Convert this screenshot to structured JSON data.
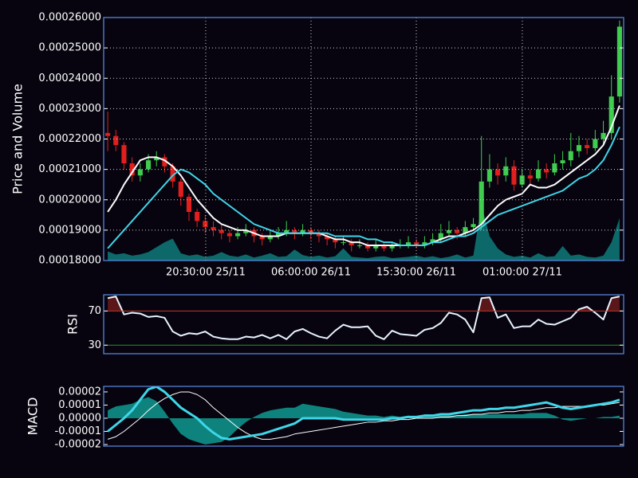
{
  "chart_data": [
    {
      "type": "candlestick",
      "ylabel": "Price and Volume",
      "categories": [
        null,
        null,
        null,
        null,
        null,
        null,
        null,
        null,
        null,
        null,
        null,
        null,
        null,
        null,
        null,
        null,
        null,
        null,
        null,
        null,
        null,
        null,
        null,
        null,
        null,
        null,
        null,
        null,
        null,
        null,
        null,
        null,
        null,
        null,
        null,
        null,
        null,
        null,
        null,
        null,
        null,
        null,
        null,
        null,
        null,
        null,
        null,
        null,
        null,
        null,
        null,
        null,
        null,
        null,
        null,
        null,
        null,
        null,
        null,
        null,
        null,
        null,
        null,
        null
      ],
      "xlim": [
        0,
        64
      ],
      "xticks": [
        {
          "value": 12.56,
          "label": "20:30:00 25/11"
        },
        {
          "value": 25.52,
          "label": "06:00:00 26/11"
        },
        {
          "value": 38.48,
          "label": "15:30:00 26/11"
        },
        {
          "value": 51.53,
          "label": "01:00:00 27/11"
        }
      ],
      "ylim": [
        0.00018,
        0.00026
      ],
      "yticks": [
        {
          "value": 0.00018,
          "label": "0.00018000"
        },
        {
          "value": 0.00019,
          "label": "0.00019000"
        },
        {
          "value": 0.0002,
          "label": "0.00020000"
        },
        {
          "value": 0.00021,
          "label": "0.00021000"
        },
        {
          "value": 0.00022,
          "label": "0.00022000"
        },
        {
          "value": 0.00023,
          "label": "0.00023000"
        },
        {
          "value": 0.00024,
          "label": "0.00024000"
        },
        {
          "value": 0.00025,
          "label": "0.00025000"
        },
        {
          "value": 0.00026,
          "label": "0.00026000"
        }
      ],
      "grid": true,
      "up_color": "#3fcc4f",
      "down_color": "#e0201e",
      "open": [
        0.000222,
        0.000221,
        0.000218,
        0.000212,
        0.000208,
        0.00021,
        0.000213,
        0.000214,
        0.000211,
        0.000206,
        0.000201,
        0.000196,
        0.000193,
        0.000191,
        0.00019,
        0.000189,
        0.000188,
        0.000189,
        0.00019,
        0.000188,
        0.000187,
        0.000188,
        0.000189,
        0.00019,
        0.000189,
        0.00019,
        0.000189,
        0.000188,
        0.000187,
        0.000186,
        0.000186,
        0.000185,
        0.000185,
        0.000184,
        0.000185,
        0.000184,
        0.000185,
        0.000185,
        0.000186,
        0.000185,
        0.000186,
        0.000187,
        0.000189,
        0.00019,
        0.000189,
        0.000191,
        0.000192,
        0.000206,
        0.00021,
        0.000208,
        0.000211,
        0.000205,
        0.000208,
        0.000207,
        0.00021,
        0.000209,
        0.000212,
        0.000213,
        0.000216,
        0.000218,
        0.000217,
        0.00022,
        0.000222,
        0.000234
      ],
      "high": [
        0.000229,
        0.000223,
        0.000219,
        0.000214,
        0.000212,
        0.000215,
        0.000216,
        0.000215,
        0.000212,
        0.000207,
        0.000202,
        0.000197,
        0.000195,
        0.000193,
        0.000192,
        0.00019,
        0.000191,
        0.000192,
        0.000191,
        0.000189,
        0.00019,
        0.000191,
        0.000193,
        0.000191,
        0.000192,
        0.000191,
        0.00019,
        0.000189,
        0.000188,
        0.000188,
        0.000187,
        0.000187,
        0.000186,
        0.000187,
        0.000186,
        0.000186,
        0.000187,
        0.000188,
        0.000187,
        0.000188,
        0.000189,
        0.000192,
        0.000193,
        0.000191,
        0.000193,
        0.000194,
        0.000221,
        0.000215,
        0.000212,
        0.000214,
        0.000213,
        0.00021,
        0.00021,
        0.000213,
        0.000212,
        0.000215,
        0.000216,
        0.000222,
        0.000221,
        0.00022,
        0.000223,
        0.000226,
        0.000241,
        0.000259
      ],
      "low": [
        0.000216,
        0.000216,
        0.00021,
        0.000206,
        0.000206,
        0.000209,
        0.000211,
        0.000209,
        0.000204,
        0.000198,
        0.000193,
        0.000191,
        0.000189,
        0.000188,
        0.000187,
        0.000186,
        0.000187,
        0.000188,
        0.000186,
        0.000185,
        0.000186,
        0.000187,
        0.000188,
        0.000187,
        0.000188,
        0.000187,
        0.000186,
        0.000185,
        0.000184,
        0.000185,
        0.000183,
        0.000184,
        0.000183,
        0.000183,
        0.000183,
        0.000183,
        0.000184,
        0.000184,
        0.000184,
        0.000184,
        0.000185,
        0.000186,
        0.000188,
        0.000187,
        0.000188,
        0.00019,
        0.00019,
        0.000204,
        0.000205,
        0.000206,
        0.000203,
        0.000204,
        0.000205,
        0.000206,
        0.000207,
        0.000208,
        0.00021,
        0.000211,
        0.000214,
        0.000215,
        0.000216,
        0.000218,
        0.00022,
        0.000232
      ],
      "close": [
        0.000221,
        0.000218,
        0.000212,
        0.000208,
        0.00021,
        0.000213,
        0.000214,
        0.000211,
        0.000206,
        0.000201,
        0.000196,
        0.000193,
        0.000191,
        0.00019,
        0.000189,
        0.000188,
        0.000189,
        0.00019,
        0.000188,
        0.000187,
        0.000188,
        0.000189,
        0.00019,
        0.000189,
        0.00019,
        0.000189,
        0.000188,
        0.000187,
        0.000186,
        0.000186,
        0.000185,
        0.000185,
        0.000184,
        0.000185,
        0.000184,
        0.000185,
        0.000185,
        0.000186,
        0.000185,
        0.000186,
        0.000187,
        0.000189,
        0.00019,
        0.000189,
        0.000191,
        0.000192,
        0.000206,
        0.00021,
        0.000208,
        0.000211,
        0.000205,
        0.000208,
        0.000207,
        0.00021,
        0.000209,
        0.000212,
        0.000213,
        0.000216,
        0.000218,
        0.000217,
        0.00022,
        0.000222,
        0.000234,
        0.000257
      ],
      "y2lim": [
        0,
        400
      ],
      "series": [
        {
          "color": "#0e7a7a",
          "kind": "area",
          "axis": "y2",
          "values": [
            15,
            10,
            12,
            8,
            10,
            14,
            22,
            30,
            36,
            12,
            8,
            10,
            6,
            8,
            14,
            8,
            6,
            10,
            5,
            8,
            12,
            6,
            7,
            18,
            9,
            6,
            8,
            5,
            7,
            20,
            6,
            5,
            4,
            6,
            7,
            4,
            5,
            6,
            8,
            5,
            7,
            4,
            6,
            10,
            5,
            8,
            92,
            40,
            20,
            10,
            6,
            8,
            5,
            12,
            6,
            7,
            24,
            8,
            10,
            6,
            5,
            8,
            30,
            70
          ]
        },
        {
          "color": "#ffffff",
          "values": [
            0.000196,
            0.0002,
            0.000205,
            0.000209,
            0.000213,
            0.000214,
            0.000214,
            0.000213,
            0.000211,
            0.000208,
            0.000204,
            0.0002,
            0.000197,
            0.000194,
            0.000192,
            0.000191,
            0.00019,
            0.00019,
            0.000189,
            0.000188,
            0.000188,
            0.000188,
            0.000189,
            0.000189,
            0.000189,
            0.000189,
            0.000189,
            0.000188,
            0.000187,
            0.000187,
            0.000186,
            0.000186,
            0.000185,
            0.000185,
            0.000185,
            0.000185,
            0.000185,
            0.000185,
            0.000185,
            0.000185,
            0.000186,
            0.000187,
            0.000188,
            0.000188,
            0.000189,
            0.00019,
            0.000192,
            0.000195,
            0.000198,
            0.0002,
            0.000201,
            0.000202,
            0.000205,
            0.000204,
            0.000204,
            0.000205,
            0.000207,
            0.000209,
            0.000211,
            0.000213,
            0.000215,
            0.000218,
            0.000224,
            0.000231
          ]
        },
        {
          "color": "#3fd6e8",
          "values": [
            0.000184,
            0.000187,
            0.00019,
            0.000193,
            0.000196,
            0.000199,
            0.000202,
            0.000205,
            0.000208,
            0.00021,
            0.000209,
            0.000207,
            0.000205,
            0.000202,
            0.0002,
            0.000198,
            0.000196,
            0.000194,
            0.000192,
            0.000191,
            0.00019,
            0.000189,
            0.000189,
            0.000189,
            0.000189,
            0.000189,
            0.000189,
            0.000189,
            0.000188,
            0.000188,
            0.000188,
            0.000188,
            0.000187,
            0.000187,
            0.000186,
            0.000186,
            0.000185,
            0.000185,
            0.000185,
            0.000185,
            0.000186,
            0.000186,
            0.000187,
            0.000188,
            0.000188,
            0.000189,
            0.000191,
            0.000193,
            0.000195,
            0.000196,
            0.000197,
            0.000198,
            0.000199,
            0.0002,
            0.000201,
            0.000202,
            0.000203,
            0.000205,
            0.000207,
            0.000208,
            0.00021,
            0.000213,
            0.000218,
            0.000224
          ]
        }
      ]
    },
    {
      "type": "line",
      "ylabel": "RSI",
      "ylim": [
        20,
        89
      ],
      "yticks": [
        30,
        70
      ],
      "tick_colors": [
        "#2e8b2e",
        "#c0392b"
      ],
      "fill_above": "#5a1618",
      "series": [
        {
          "color": "#e8f4ff",
          "values": [
            85,
            87,
            66,
            68,
            67,
            63,
            64,
            62,
            46,
            41,
            44,
            43,
            46,
            40,
            38,
            37,
            37,
            40,
            39,
            42,
            38,
            42,
            37,
            46,
            49,
            44,
            40,
            38,
            47,
            54,
            51,
            51,
            52,
            41,
            37,
            47,
            43,
            42,
            41,
            48,
            50,
            56,
            68,
            66,
            60,
            45,
            85,
            86,
            62,
            66,
            50,
            52,
            52,
            60,
            55,
            54,
            58,
            62,
            72,
            75,
            68,
            60,
            85,
            87
          ]
        }
      ]
    },
    {
      "type": "line",
      "ylabel": "MACD",
      "ylim": [
        -2.12e-05,
        2.42e-05
      ],
      "yticks": [
        {
          "value": 2e-05,
          "label": "0.00002"
        },
        {
          "value": 1e-05,
          "label": "0.00001"
        },
        {
          "value": 0,
          "label": "0.00000"
        },
        {
          "value": -1e-05,
          "label": "-0.00001"
        },
        {
          "value": -2e-05,
          "label": "-0.00002"
        }
      ],
      "series": [
        {
          "color": "#0f9a90",
          "kind": "area",
          "values": [
            6e-06,
            9e-06,
            1e-05,
            1.1e-05,
            1.4e-05,
            1.6e-05,
            1.3e-05,
            5e-06,
            -4e-06,
            -1.2e-05,
            -1.6e-05,
            -1.8e-05,
            -2e-05,
            -1.9e-05,
            -1.8e-05,
            -1.4e-05,
            -8e-06,
            -3e-06,
            1e-06,
            4e-06,
            6e-06,
            7e-06,
            8e-06,
            8e-06,
            1.1e-05,
            1e-05,
            9e-06,
            8e-06,
            7e-06,
            5e-06,
            4e-06,
            3e-06,
            2e-06,
            2e-06,
            1e-06,
            2e-06,
            1e-06,
            2e-06,
            1e-06,
            2e-06,
            2e-06,
            2e-06,
            2e-06,
            2e-06,
            3e-06,
            3e-06,
            3e-06,
            3e-06,
            3e-06,
            3e-06,
            3e-06,
            3e-06,
            4e-06,
            4e-06,
            4e-06,
            2e-06,
            -1e-06,
            -2e-06,
            -1e-06,
            0,
            0,
            1e-06,
            1e-06,
            2e-06
          ]
        },
        {
          "color": "#ffffff",
          "width": 1,
          "values": [
            -1.6e-05,
            -1.4e-05,
            -1e-05,
            -5e-06,
            0,
            6e-06,
            1.1e-05,
            1.5e-05,
            1.8e-05,
            2e-05,
            2e-05,
            1.8e-05,
            1.4e-05,
            8e-06,
            3e-06,
            -2e-06,
            -7e-06,
            -1.1e-05,
            -1.4e-05,
            -1.6e-05,
            -1.6e-05,
            -1.5e-05,
            -1.4e-05,
            -1.2e-05,
            -1.1e-05,
            -1e-05,
            -9e-06,
            -8e-06,
            -7e-06,
            -6e-06,
            -5e-06,
            -4e-06,
            -3e-06,
            -3e-06,
            -2e-06,
            -2e-06,
            -1e-06,
            -1e-06,
            0,
            0,
            0,
            1e-06,
            1e-06,
            2e-06,
            2e-06,
            3e-06,
            3e-06,
            4e-06,
            4e-06,
            5e-06,
            5e-06,
            6e-06,
            6e-06,
            7e-06,
            8e-06,
            8e-06,
            9e-06,
            9e-06,
            9e-06,
            9e-06,
            1e-05,
            1e-05,
            1.1e-05,
            1.2e-05
          ]
        },
        {
          "color": "#3fd6e8",
          "width": 3,
          "values": [
            -1e-05,
            -5e-06,
            0,
            6e-06,
            1.4e-05,
            2.2e-05,
            2.4e-05,
            2e-05,
            1.4e-05,
            8e-06,
            4e-06,
            0,
            -6e-06,
            -1.1e-05,
            -1.5e-05,
            -1.6e-05,
            -1.5e-05,
            -1.4e-05,
            -1.3e-05,
            -1.2e-05,
            -1e-05,
            -8e-06,
            -6e-06,
            -4e-06,
            0,
            0,
            0,
            0,
            0,
            -1e-06,
            -1e-06,
            -1e-06,
            -1e-06,
            -1e-06,
            -1e-06,
            0,
            0,
            1e-06,
            1e-06,
            2e-06,
            2e-06,
            3e-06,
            3e-06,
            4e-06,
            5e-06,
            6e-06,
            6e-06,
            7e-06,
            7e-06,
            8e-06,
            8e-06,
            9e-06,
            1e-05,
            1.1e-05,
            1.2e-05,
            1e-05,
            8e-06,
            7e-06,
            8e-06,
            9e-06,
            1e-05,
            1.1e-05,
            1.2e-05,
            1.4e-05
          ]
        }
      ]
    }
  ]
}
